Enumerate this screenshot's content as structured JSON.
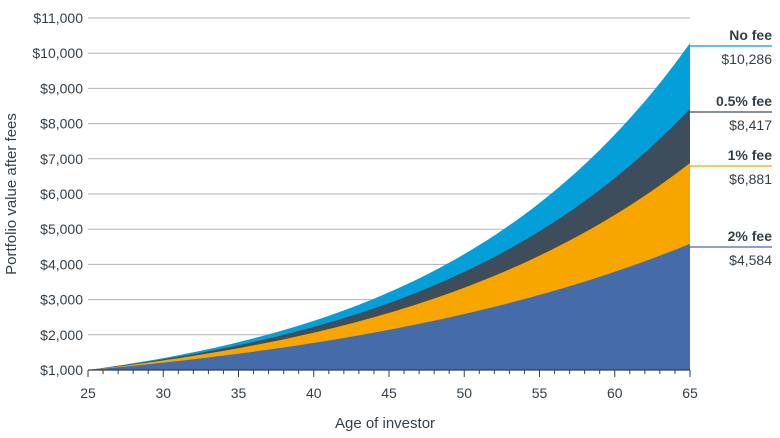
{
  "chart_data": {
    "type": "area",
    "xlabel": "Age of investor",
    "ylabel": "Portfolio value after fees",
    "xlim": [
      25,
      65
    ],
    "ylim": [
      1000,
      11000
    ],
    "x_ticks": [
      25,
      30,
      35,
      40,
      45,
      50,
      55,
      60,
      65
    ],
    "y_ticks": [
      1000,
      2000,
      3000,
      4000,
      5000,
      6000,
      7000,
      8000,
      9000,
      10000,
      11000
    ],
    "y_tick_labels": [
      "$1,000",
      "$2,000",
      "$3,000",
      "$4,000",
      "$5,000",
      "$6,000",
      "$7,000",
      "$8,000",
      "$9,000",
      "$10,000",
      "$11,000"
    ],
    "grid": "horizontal",
    "legend_placement": "right",
    "series": [
      {
        "name": "No fee",
        "final_label": "$10,286",
        "final_value": 10286,
        "start_value": 1000,
        "color": "#049fd9"
      },
      {
        "name": "0.5% fee",
        "final_label": "$8,417",
        "final_value": 8417,
        "start_value": 1000,
        "color": "#3d4d5c"
      },
      {
        "name": "1% fee",
        "final_label": "$6,881",
        "final_value": 6881,
        "start_value": 1000,
        "color": "#f7a600"
      },
      {
        "name": "2% fee",
        "final_label": "$4,584",
        "final_value": 4584,
        "start_value": 1000,
        "color": "#456ca8"
      }
    ]
  }
}
